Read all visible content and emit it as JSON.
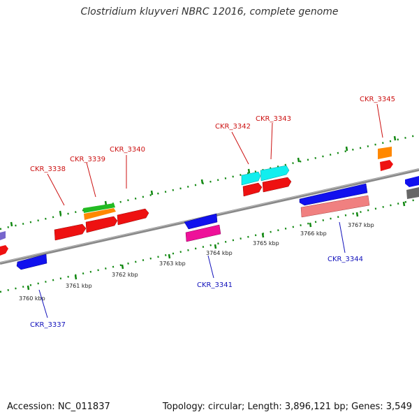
{
  "title": "Clostridium kluyveri NBRC 12016, complete genome",
  "footer": {
    "accession": "Accession: NC_011837",
    "summary": "Topology: circular; Length: 3,896,121 bp; Genes: 3,549"
  },
  "scale_labels": [
    "3760 kbp",
    "3761 kbp",
    "3762 kbp",
    "3763 kbp",
    "3764 kbp",
    "3765 kbp",
    "3766 kbp",
    "3767 kbp"
  ],
  "gene_labels": {
    "forward": [
      "CKR_3338",
      "CKR_3339",
      "CKR_3340",
      "CKR_3342",
      "CKR_3343",
      "CKR_3345"
    ],
    "reverse": [
      "CKR_3337",
      "CKR_3341",
      "CKR_3344"
    ]
  },
  "colors": {
    "forward_label": "#cc1111",
    "reverse_label": "#1111bb",
    "backbone": "#888888",
    "tick": "#118811",
    "red": "#ee1111",
    "blue": "#1111ee",
    "orange": "#ff8800",
    "green": "#22bb22",
    "cyan": "#11eeee",
    "magenta": "#ee1199",
    "salmon": "#f08080",
    "gray": "#666666",
    "purple": "#7766cc"
  }
}
